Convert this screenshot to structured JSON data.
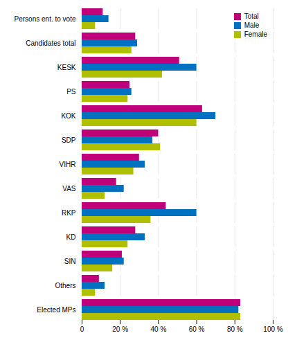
{
  "chart_data": {
    "type": "bar",
    "orientation": "horizontal",
    "categories": [
      "Persons ent. to vote",
      "Candidates total",
      "KESK",
      "PS",
      "KOK",
      "SDP",
      "VIHR",
      "VAS",
      "RKP",
      "KD",
      "SIN",
      "Others",
      "Elected MPs"
    ],
    "series": [
      {
        "name": "Total",
        "color": "#c0007a",
        "values": [
          11,
          28,
          51,
          25,
          63,
          40,
          30,
          18,
          44,
          28,
          21,
          9,
          83
        ]
      },
      {
        "name": "Male",
        "color": "#0070c0",
        "values": [
          14,
          29,
          60,
          26,
          70,
          37,
          33,
          22,
          60,
          33,
          22,
          12,
          82
        ]
      },
      {
        "name": "Female",
        "color": "#b0c000",
        "values": [
          7,
          26,
          42,
          24,
          60,
          41,
          27,
          12,
          36,
          24,
          16,
          7,
          83
        ]
      }
    ],
    "xlim": [
      0,
      100
    ],
    "xticks": [
      0,
      {
        "value": 20,
        "label": "20 %"
      },
      {
        "value": 40,
        "label": "40 %"
      },
      {
        "value": 60,
        "label": "60 %"
      },
      {
        "value": 80,
        "label": "80 %"
      },
      {
        "value": 100,
        "label": "100 %"
      }
    ],
    "grid": true,
    "legend": "upper right"
  }
}
